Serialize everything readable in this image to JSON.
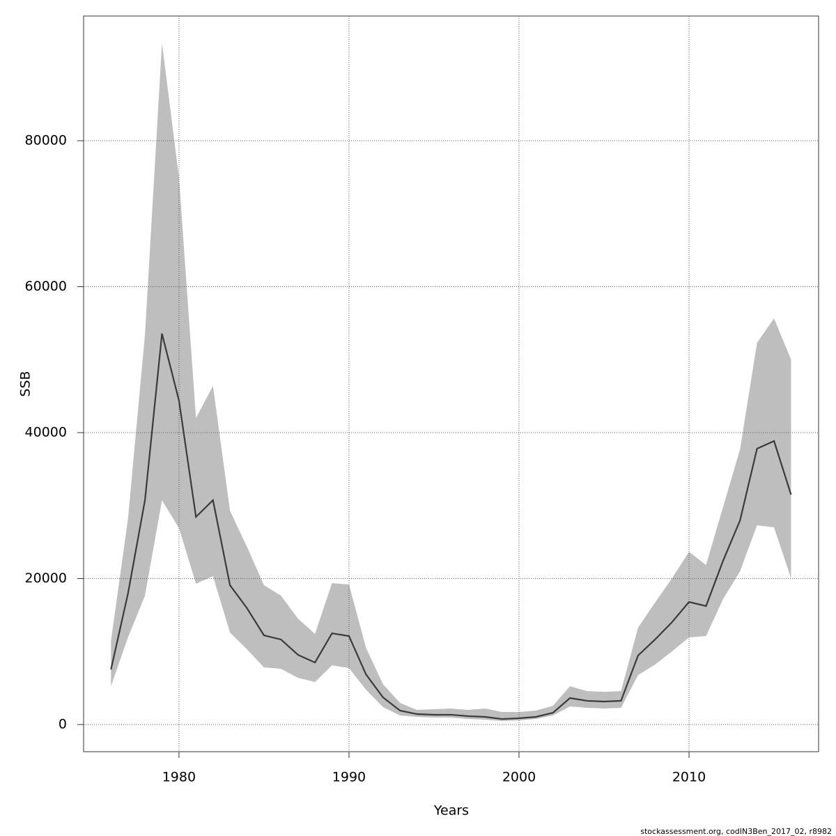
{
  "chart_data": {
    "type": "line",
    "xlabel": "Years",
    "ylabel": "SSB",
    "footer": "stockassessment.org, codIN3Ben_2017_02, r8982",
    "x": [
      1976,
      1977,
      1978,
      1979,
      1980,
      1981,
      1982,
      1983,
      1984,
      1985,
      1986,
      1987,
      1988,
      1989,
      1990,
      1991,
      1992,
      1993,
      1994,
      1995,
      1996,
      1997,
      1998,
      1999,
      2000,
      2001,
      2002,
      2003,
      2004,
      2005,
      2006,
      2007,
      2008,
      2009,
      2010,
      2011,
      2012,
      2013,
      2014,
      2015,
      2016
    ],
    "values": [
      7540,
      17950,
      30740,
      53560,
      44390,
      28450,
      30740,
      19090,
      15940,
      12220,
      11650,
      9550,
      8500,
      12500,
      12120,
      6870,
      3720,
      1910,
      1430,
      1340,
      1340,
      1150,
      1050,
      760,
      860,
      1050,
      1620,
      3630,
      3250,
      3150,
      3250,
      9450,
      11650,
      14030,
      16800,
      16230,
      22430,
      27970,
      37800,
      38850,
      31500
    ],
    "lower": [
      5250,
      11930,
      17660,
      30740,
      26920,
      19280,
      20330,
      12600,
      10310,
      7830,
      7640,
      6400,
      5820,
      8110,
      7730,
      4770,
      2390,
      1240,
      1050,
      950,
      950,
      760,
      670,
      480,
      570,
      760,
      1240,
      2480,
      2290,
      2200,
      2290,
      6780,
      8210,
      10020,
      11930,
      12120,
      17180,
      21000,
      27300,
      27020,
      20050
    ],
    "upper": [
      11450,
      28160,
      53460,
      93370,
      74940,
      42000,
      46400,
      29300,
      24340,
      19090,
      17660,
      14510,
      12410,
      19380,
      19190,
      10500,
      5540,
      2960,
      2000,
      2100,
      2200,
      2000,
      2200,
      1720,
      1720,
      1910,
      2580,
      5250,
      4580,
      4490,
      4580,
      13270,
      16710,
      20050,
      23680,
      21860,
      29790,
      37710,
      52310,
      55660,
      50020
    ],
    "color": "#3a3a3a",
    "band_color": "#bebebe",
    "xlim": [
      1974.39,
      2017.62
    ],
    "ylim": [
      -3723,
      97088
    ],
    "xticks": [
      1980,
      1990,
      2000,
      2010
    ],
    "yticks": [
      0,
      20000,
      40000,
      60000,
      80000
    ],
    "grid": true
  }
}
